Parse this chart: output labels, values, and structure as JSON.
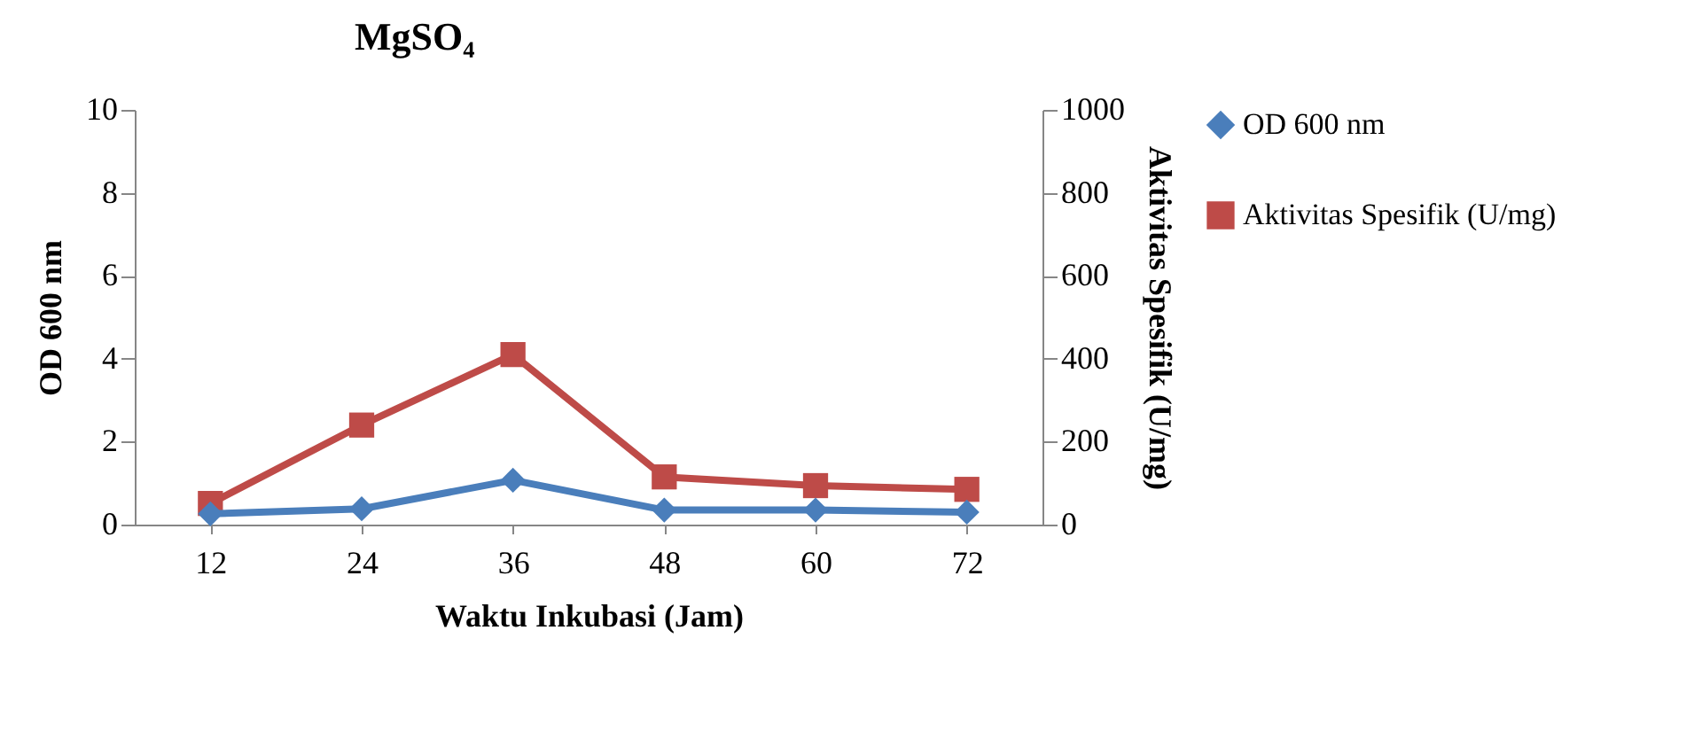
{
  "chart_data": {
    "type": "line",
    "title": "MgSO₄",
    "xlabel": "Waktu Inkubasi (Jam)",
    "ylabel": "OD 600 nm",
    "y2label": "Aktivitas Spesifik (U/mg)",
    "categories": [
      "12",
      "24",
      "36",
      "48",
      "60",
      "72"
    ],
    "series": [
      {
        "name": "OD 600 nm",
        "color": "#4a7ebb",
        "marker": "diamond",
        "values": [
          0.26,
          0.38,
          1.07,
          0.35,
          0.35,
          0.3
        ]
      },
      {
        "name": "Aktivitas Spesifik (U/mg)",
        "color": "#be4b48",
        "marker": "square",
        "axis": "y2",
        "values": [
          51,
          240,
          410,
          115,
          94,
          85
        ]
      }
    ],
    "ylim": [
      0,
      10
    ],
    "yticks": [
      0,
      2,
      4,
      6,
      8,
      10
    ],
    "y2lim": [
      0,
      1000
    ],
    "y2ticks": [
      0,
      200,
      400,
      600,
      800,
      1000
    ],
    "grid": false,
    "legend": "right"
  }
}
